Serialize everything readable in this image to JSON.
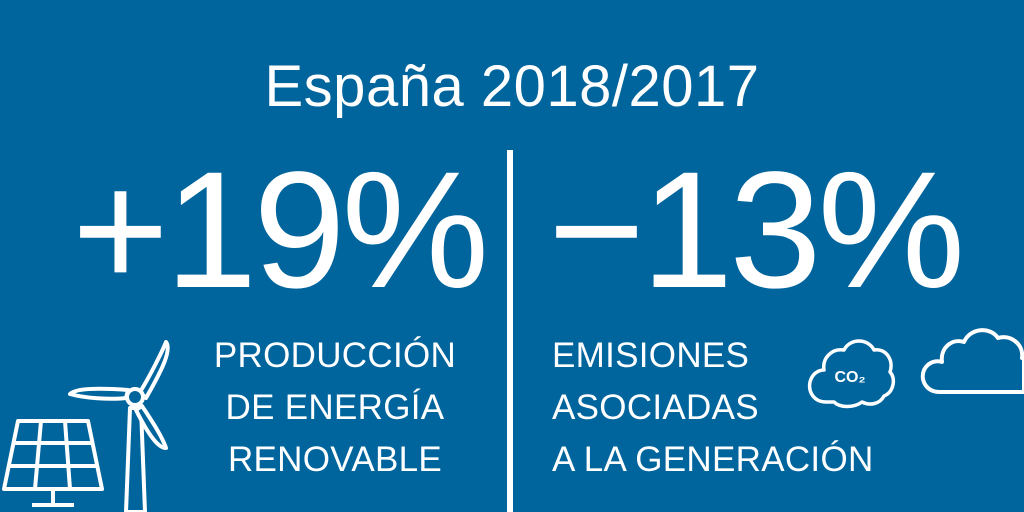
{
  "title": "España 2018/2017",
  "left": {
    "value": "+19%",
    "label_lines": [
      "PRODUCCIÓN",
      "DE ENERGÍA",
      "RENOVABLE"
    ]
  },
  "right": {
    "value": "−13%",
    "label_lines": [
      "EMISIONES",
      "ASOCIADAS",
      "A LA GENERACIÓN"
    ],
    "co2_label": "CO₂"
  },
  "colors": {
    "background": "#00649d",
    "foreground": "#ffffff"
  },
  "icons": [
    "solar-panel-icon",
    "wind-turbine-icon",
    "co2-cloud-icon",
    "cloud-icon"
  ]
}
